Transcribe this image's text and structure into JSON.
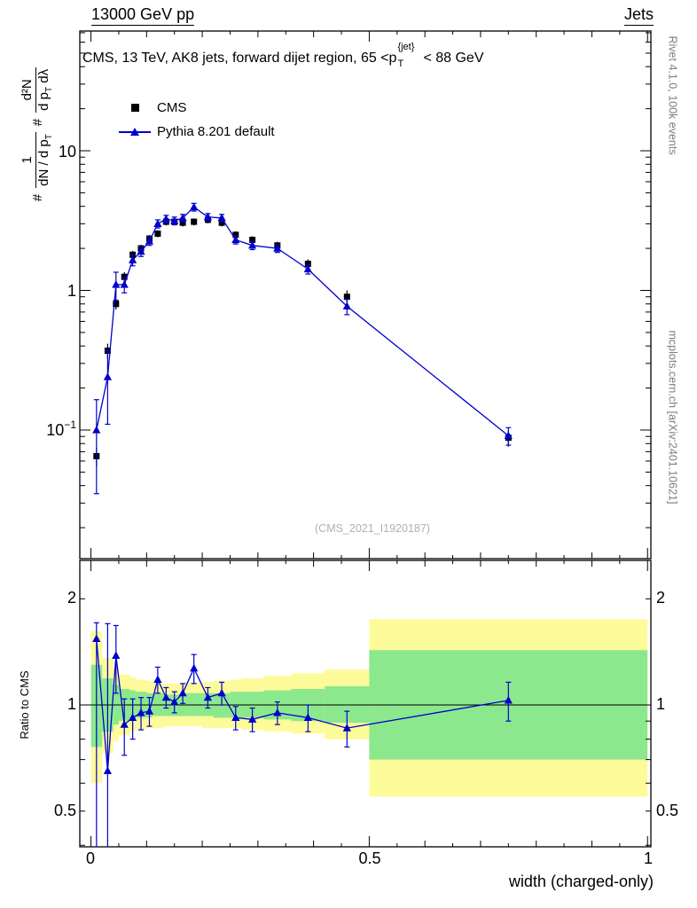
{
  "header": {
    "left": "13000 GeV pp",
    "right": "Jets"
  },
  "panel_title": {
    "pre": "CMS, 13 TeV, AK8 jets, forward dijet region, 65 <p",
    "sup": "{jet}",
    "sub": "T",
    "post": "< 88 GeV"
  },
  "legend": {
    "items": [
      {
        "label": "CMS"
      },
      {
        "label": "Pythia 8.201 default"
      }
    ]
  },
  "watermark": "(CMS_2021_I1920187)",
  "side_notes": {
    "top": "Rivet 4.1.0, 100k events",
    "bottom": "mcplots.cern.ch [arXiv:2401.10621]"
  },
  "y_axis_label": {
    "hash1": "#",
    "frac1_num": "1",
    "frac1_den": "dN / d p",
    "frac1_den_sub": "T",
    "hash2": "#",
    "frac2_num": "d²N",
    "frac2_den1": "d p",
    "frac2_den_sub": "T",
    "frac2_den2": " dλ"
  },
  "ratio_axis_label": "Ratio to CMS",
  "x_title": "width (charged-only)",
  "ticks": {
    "main_y": [
      {
        "base": "10",
        "exp": ""
      },
      {
        "base": "1",
        "exp": ""
      },
      {
        "base": "10",
        "exp": "−1"
      }
    ],
    "ratio_y": [
      "2",
      "1",
      "0.5"
    ],
    "x": [
      "0",
      "0.5",
      "1"
    ]
  },
  "chart_data": {
    "type": "line",
    "title": "CMS, 13 TeV, AK8 jets, forward dijet region, 65 < pT^{jet} < 88 GeV",
    "xlabel": "width (charged-only)",
    "ylabel": "# 1/(dN/dpT) # d2N/(dpT dlambda)",
    "legend_position": "top-left-inside",
    "main": {
      "yscale": "log",
      "xlim": [
        -0.02,
        1.006
      ],
      "ylim": [
        0.012,
        72
      ],
      "yticks_labeled": [
        10,
        1,
        0.1
      ],
      "xticks_labeled": [
        0,
        0.5,
        1
      ],
      "x": [
        0.01,
        0.03,
        0.045,
        0.06,
        0.075,
        0.09,
        0.105,
        0.12,
        0.135,
        0.15,
        0.165,
        0.185,
        0.21,
        0.235,
        0.26,
        0.29,
        0.335,
        0.39,
        0.46,
        0.75
      ],
      "series": [
        {
          "name": "CMS",
          "marker": "square",
          "color": "#000000",
          "line": false,
          "y": [
            0.065,
            0.37,
            0.8,
            1.25,
            1.8,
            2.0,
            2.35,
            2.55,
            3.1,
            3.1,
            3.05,
            3.1,
            3.2,
            3.05,
            2.5,
            2.3,
            2.1,
            1.55,
            0.9,
            0.088
          ],
          "yerr": [
            0.01,
            0.045,
            0.07,
            0.1,
            0.12,
            0.12,
            0.14,
            0.15,
            0.18,
            0.18,
            0.18,
            0.18,
            0.18,
            0.18,
            0.15,
            0.14,
            0.13,
            0.12,
            0.1,
            0.012
          ]
        },
        {
          "name": "Pythia 8.201 default",
          "marker": "triangle",
          "color": "#0000cc",
          "line": true,
          "y": [
            0.1,
            0.24,
            1.1,
            1.1,
            1.65,
            1.9,
            2.25,
            3.0,
            3.25,
            3.15,
            3.3,
            3.95,
            3.35,
            3.3,
            2.3,
            2.1,
            2.0,
            1.42,
            0.77,
            0.091
          ],
          "yerr": [
            0.065,
            0.13,
            0.25,
            0.14,
            0.15,
            0.15,
            0.15,
            0.2,
            0.2,
            0.2,
            0.2,
            0.25,
            0.2,
            0.2,
            0.15,
            0.14,
            0.13,
            0.11,
            0.1,
            0.013
          ]
        }
      ]
    },
    "ratio": {
      "yscale": "log",
      "ylim": [
        0.396,
        2.57
      ],
      "yticks_labeled": [
        2,
        1,
        0.5
      ],
      "reference_line": 1,
      "band_colors": {
        "outer": "#fdfa9a",
        "inner": "#8ce88c"
      },
      "bins": [
        {
          "x0": 0.0,
          "x1": 0.02,
          "outer": [
            0.6,
            1.62
          ],
          "inner": [
            0.76,
            1.3
          ]
        },
        {
          "x0": 0.02,
          "x1": 0.04,
          "outer": [
            0.73,
            1.36
          ],
          "inner": [
            0.84,
            1.19
          ]
        },
        {
          "x0": 0.04,
          "x1": 0.05,
          "outer": [
            0.79,
            1.28
          ],
          "inner": [
            0.88,
            1.14
          ]
        },
        {
          "x0": 0.05,
          "x1": 0.07,
          "outer": [
            0.82,
            1.22
          ],
          "inner": [
            0.9,
            1.11
          ]
        },
        {
          "x0": 0.07,
          "x1": 0.08,
          "outer": [
            0.84,
            1.2
          ],
          "inner": [
            0.91,
            1.1
          ]
        },
        {
          "x0": 0.08,
          "x1": 0.1,
          "outer": [
            0.85,
            1.18
          ],
          "inner": [
            0.92,
            1.09
          ]
        },
        {
          "x0": 0.1,
          "x1": 0.11,
          "outer": [
            0.86,
            1.17
          ],
          "inner": [
            0.92,
            1.08
          ]
        },
        {
          "x0": 0.11,
          "x1": 0.13,
          "outer": [
            0.86,
            1.16
          ],
          "inner": [
            0.93,
            1.08
          ]
        },
        {
          "x0": 0.13,
          "x1": 0.14,
          "outer": [
            0.87,
            1.15
          ],
          "inner": [
            0.93,
            1.07
          ]
        },
        {
          "x0": 0.14,
          "x1": 0.16,
          "outer": [
            0.87,
            1.15
          ],
          "inner": [
            0.93,
            1.07
          ]
        },
        {
          "x0": 0.16,
          "x1": 0.17,
          "outer": [
            0.87,
            1.15
          ],
          "inner": [
            0.93,
            1.07
          ]
        },
        {
          "x0": 0.17,
          "x1": 0.2,
          "outer": [
            0.87,
            1.16
          ],
          "inner": [
            0.93,
            1.08
          ]
        },
        {
          "x0": 0.2,
          "x1": 0.22,
          "outer": [
            0.86,
            1.16
          ],
          "inner": [
            0.93,
            1.08
          ]
        },
        {
          "x0": 0.22,
          "x1": 0.25,
          "outer": [
            0.86,
            1.17
          ],
          "inner": [
            0.92,
            1.08
          ]
        },
        {
          "x0": 0.25,
          "x1": 0.27,
          "outer": [
            0.86,
            1.18
          ],
          "inner": [
            0.92,
            1.09
          ]
        },
        {
          "x0": 0.27,
          "x1": 0.31,
          "outer": [
            0.85,
            1.19
          ],
          "inner": [
            0.92,
            1.09
          ]
        },
        {
          "x0": 0.31,
          "x1": 0.36,
          "outer": [
            0.84,
            1.21
          ],
          "inner": [
            0.91,
            1.1
          ]
        },
        {
          "x0": 0.36,
          "x1": 0.42,
          "outer": [
            0.83,
            1.23
          ],
          "inner": [
            0.9,
            1.11
          ]
        },
        {
          "x0": 0.42,
          "x1": 0.5,
          "outer": [
            0.8,
            1.26
          ],
          "inner": [
            0.89,
            1.13
          ]
        },
        {
          "x0": 0.5,
          "x1": 1.0,
          "outer": [
            0.55,
            1.75
          ],
          "inner": [
            0.7,
            1.43
          ]
        }
      ],
      "points": {
        "y": [
          1.54,
          0.65,
          1.38,
          0.88,
          0.92,
          0.95,
          0.96,
          1.18,
          1.05,
          1.02,
          1.08,
          1.27,
          1.05,
          1.08,
          0.92,
          0.91,
          0.95,
          0.92,
          0.86,
          1.03
        ],
        "err_lo": [
          1.15,
          0.42,
          0.3,
          0.16,
          0.12,
          0.1,
          0.09,
          0.1,
          0.07,
          0.07,
          0.07,
          0.12,
          0.07,
          0.08,
          0.07,
          0.07,
          0.07,
          0.08,
          0.1,
          0.13
        ],
        "err_hi": [
          0.17,
          1.05,
          0.3,
          0.16,
          0.12,
          0.1,
          0.09,
          0.1,
          0.07,
          0.07,
          0.07,
          0.12,
          0.07,
          0.08,
          0.07,
          0.07,
          0.07,
          0.08,
          0.1,
          0.13
        ]
      }
    }
  }
}
